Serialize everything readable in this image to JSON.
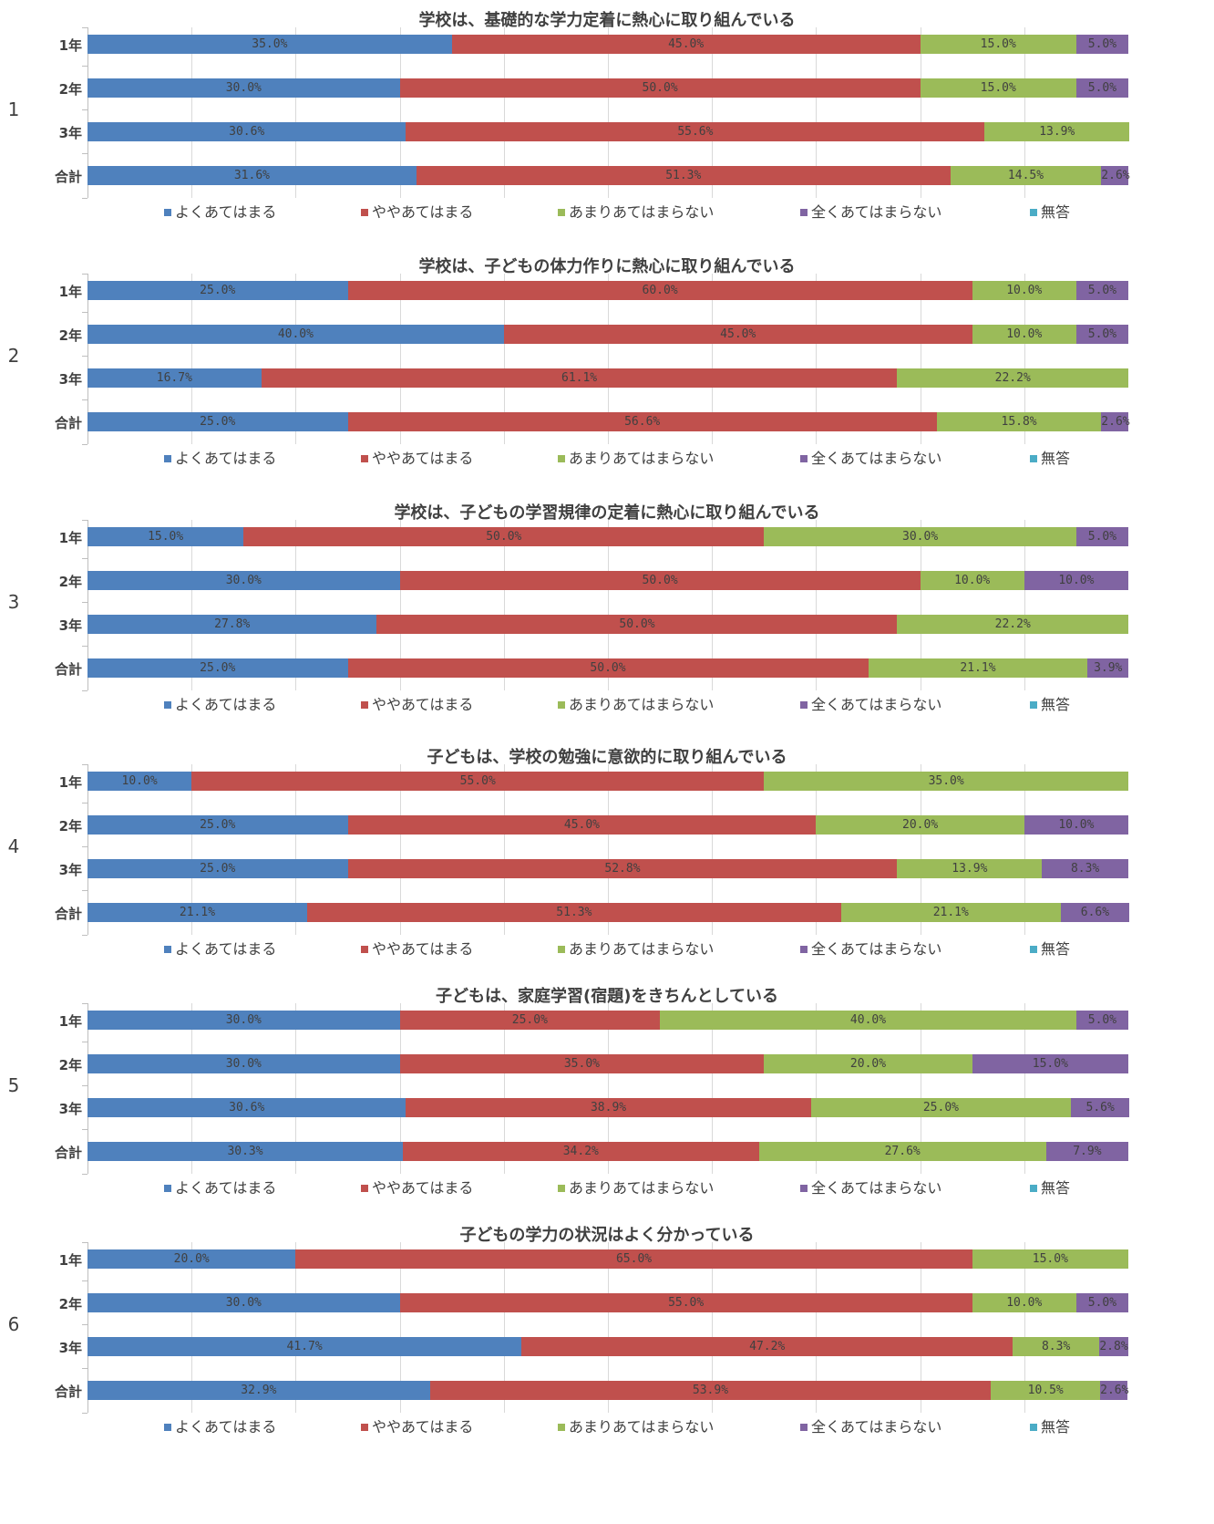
{
  "chart_data": [
    {
      "type": "stacked-bar-horizontal",
      "panel_number": "1",
      "title": "学校は、基礎的な学力定着に熱心に取り組んでいる",
      "categories": [
        "1年",
        "2年",
        "3年",
        "合計"
      ],
      "xlim": [
        0,
        100
      ],
      "grid": true,
      "legend_position": "bottom",
      "series": [
        {
          "name": "よくあてはまる",
          "color": "#4f81bd",
          "values": [
            35.0,
            30.0,
            30.6,
            31.6
          ],
          "labels": [
            "35.0%",
            "30.0%",
            "30.6%",
            "31.6%"
          ]
        },
        {
          "name": "ややあてはまる",
          "color": "#c0504d",
          "values": [
            45.0,
            50.0,
            55.6,
            51.3
          ],
          "labels": [
            "45.0%",
            "50.0%",
            "55.6%",
            "51.3%"
          ]
        },
        {
          "name": "あまりあてはまらない",
          "color": "#9bbb59",
          "values": [
            15.0,
            15.0,
            13.9,
            14.5
          ],
          "labels": [
            "15.0%",
            "15.0%",
            "13.9%",
            "14.5%"
          ]
        },
        {
          "name": "全くあてはまらない",
          "color": "#8064a2",
          "values": [
            5.0,
            5.0,
            0,
            2.6
          ],
          "labels": [
            "5.0%",
            "5.0%",
            "",
            "2.6%"
          ]
        },
        {
          "name": "無答",
          "color": "#4bacc6",
          "values": [
            0,
            0,
            0,
            0
          ],
          "labels": [
            "",
            "",
            "",
            ""
          ]
        }
      ]
    },
    {
      "type": "stacked-bar-horizontal",
      "panel_number": "2",
      "title": "学校は、子どもの体力作りに熱心に取り組んでいる",
      "categories": [
        "1年",
        "2年",
        "3年",
        "合計"
      ],
      "xlim": [
        0,
        100
      ],
      "grid": true,
      "legend_position": "bottom",
      "series": [
        {
          "name": "よくあてはまる",
          "color": "#4f81bd",
          "values": [
            25.0,
            40.0,
            16.7,
            25.0
          ],
          "labels": [
            "25.0%",
            "40.0%",
            "16.7%",
            "25.0%"
          ]
        },
        {
          "name": "ややあてはまる",
          "color": "#c0504d",
          "values": [
            60.0,
            45.0,
            61.1,
            56.6
          ],
          "labels": [
            "60.0%",
            "45.0%",
            "61.1%",
            "56.6%"
          ]
        },
        {
          "name": "あまりあてはまらない",
          "color": "#9bbb59",
          "values": [
            10.0,
            10.0,
            22.2,
            15.8
          ],
          "labels": [
            "10.0%",
            "10.0%",
            "22.2%",
            "15.8%"
          ]
        },
        {
          "name": "全くあてはまらない",
          "color": "#8064a2",
          "values": [
            5.0,
            5.0,
            0,
            2.6
          ],
          "labels": [
            "5.0%",
            "5.0%",
            "",
            "2.6%"
          ]
        },
        {
          "name": "無答",
          "color": "#4bacc6",
          "values": [
            0,
            0,
            0,
            0
          ],
          "labels": [
            "",
            "",
            "",
            ""
          ]
        }
      ]
    },
    {
      "type": "stacked-bar-horizontal",
      "panel_number": "3",
      "title": "学校は、子どもの学習規律の定着に熱心に取り組んでいる",
      "categories": [
        "1年",
        "2年",
        "3年",
        "合計"
      ],
      "xlim": [
        0,
        100
      ],
      "grid": true,
      "legend_position": "bottom",
      "series": [
        {
          "name": "よくあてはまる",
          "color": "#4f81bd",
          "values": [
            15.0,
            30.0,
            27.8,
            25.0
          ],
          "labels": [
            "15.0%",
            "30.0%",
            "27.8%",
            "25.0%"
          ]
        },
        {
          "name": "ややあてはまる",
          "color": "#c0504d",
          "values": [
            50.0,
            50.0,
            50.0,
            50.0
          ],
          "labels": [
            "50.0%",
            "50.0%",
            "50.0%",
            "50.0%"
          ]
        },
        {
          "name": "あまりあてはまらない",
          "color": "#9bbb59",
          "values": [
            30.0,
            10.0,
            22.2,
            21.1
          ],
          "labels": [
            "30.0%",
            "10.0%",
            "22.2%",
            "21.1%"
          ]
        },
        {
          "name": "全くあてはまらない",
          "color": "#8064a2",
          "values": [
            5.0,
            10.0,
            0,
            3.9
          ],
          "labels": [
            "5.0%",
            "10.0%",
            "",
            "3.9%"
          ]
        },
        {
          "name": "無答",
          "color": "#4bacc6",
          "values": [
            0,
            0,
            0,
            0
          ],
          "labels": [
            "",
            "",
            "",
            ""
          ]
        }
      ]
    },
    {
      "type": "stacked-bar-horizontal",
      "panel_number": "4",
      "title": "子どもは、学校の勉強に意欲的に取り組んでいる",
      "categories": [
        "1年",
        "2年",
        "3年",
        "合計"
      ],
      "xlim": [
        0,
        100
      ],
      "grid": true,
      "legend_position": "bottom",
      "series": [
        {
          "name": "よくあてはまる",
          "color": "#4f81bd",
          "values": [
            10.0,
            25.0,
            25.0,
            21.1
          ],
          "labels": [
            "10.0%",
            "25.0%",
            "25.0%",
            "21.1%"
          ]
        },
        {
          "name": "ややあてはまる",
          "color": "#c0504d",
          "values": [
            55.0,
            45.0,
            52.8,
            51.3
          ],
          "labels": [
            "55.0%",
            "45.0%",
            "52.8%",
            "51.3%"
          ]
        },
        {
          "name": "あまりあてはまらない",
          "color": "#9bbb59",
          "values": [
            35.0,
            20.0,
            13.9,
            21.1
          ],
          "labels": [
            "35.0%",
            "20.0%",
            "13.9%",
            "21.1%"
          ]
        },
        {
          "name": "全くあてはまらない",
          "color": "#8064a2",
          "values": [
            0,
            10.0,
            8.3,
            6.6
          ],
          "labels": [
            "",
            "10.0%",
            "8.3%",
            "6.6%"
          ]
        },
        {
          "name": "無答",
          "color": "#4bacc6",
          "values": [
            0,
            0,
            0,
            0
          ],
          "labels": [
            "",
            "",
            "",
            ""
          ]
        }
      ]
    },
    {
      "type": "stacked-bar-horizontal",
      "panel_number": "5",
      "title": "子どもは、家庭学習(宿題)をきちんとしている",
      "categories": [
        "1年",
        "2年",
        "3年",
        "合計"
      ],
      "xlim": [
        0,
        100
      ],
      "grid": true,
      "legend_position": "bottom",
      "series": [
        {
          "name": "よくあてはまる",
          "color": "#4f81bd",
          "values": [
            30.0,
            30.0,
            30.6,
            30.3
          ],
          "labels": [
            "30.0%",
            "30.0%",
            "30.6%",
            "30.3%"
          ]
        },
        {
          "name": "ややあてはまる",
          "color": "#c0504d",
          "values": [
            25.0,
            35.0,
            38.9,
            34.2
          ],
          "labels": [
            "25.0%",
            "35.0%",
            "38.9%",
            "34.2%"
          ]
        },
        {
          "name": "あまりあてはまらない",
          "color": "#9bbb59",
          "values": [
            40.0,
            20.0,
            25.0,
            27.6
          ],
          "labels": [
            "40.0%",
            "20.0%",
            "25.0%",
            "27.6%"
          ]
        },
        {
          "name": "全くあてはまらない",
          "color": "#8064a2",
          "values": [
            5.0,
            15.0,
            5.6,
            7.9
          ],
          "labels": [
            "5.0%",
            "15.0%",
            "5.6%",
            "7.9%"
          ]
        },
        {
          "name": "無答",
          "color": "#4bacc6",
          "values": [
            0,
            0,
            0,
            0
          ],
          "labels": [
            "",
            "",
            "",
            ""
          ]
        }
      ]
    },
    {
      "type": "stacked-bar-horizontal",
      "panel_number": "6",
      "title": "子どもの学力の状況はよく分かっている",
      "categories": [
        "1年",
        "2年",
        "3年",
        "合計"
      ],
      "xlim": [
        0,
        100
      ],
      "grid": true,
      "legend_position": "bottom",
      "series": [
        {
          "name": "よくあてはまる",
          "color": "#4f81bd",
          "values": [
            20.0,
            30.0,
            41.7,
            32.9
          ],
          "labels": [
            "20.0%",
            "30.0%",
            "41.7%",
            "32.9%"
          ]
        },
        {
          "name": "ややあてはまる",
          "color": "#c0504d",
          "values": [
            65.0,
            55.0,
            47.2,
            53.9
          ],
          "labels": [
            "65.0%",
            "55.0%",
            "47.2%",
            "53.9%"
          ]
        },
        {
          "name": "あまりあてはまらない",
          "color": "#9bbb59",
          "values": [
            15.0,
            10.0,
            8.3,
            10.5
          ],
          "labels": [
            "15.0%",
            "10.0%",
            "8.3%",
            "10.5%"
          ]
        },
        {
          "name": "全くあてはまらない",
          "color": "#8064a2",
          "values": [
            0,
            5.0,
            2.8,
            2.6
          ],
          "labels": [
            "",
            "5.0%",
            "2.8%",
            "2.6%"
          ]
        },
        {
          "name": "無答",
          "color": "#4bacc6",
          "values": [
            0,
            0,
            0,
            0
          ],
          "labels": [
            "",
            "",
            "",
            ""
          ]
        }
      ]
    }
  ]
}
